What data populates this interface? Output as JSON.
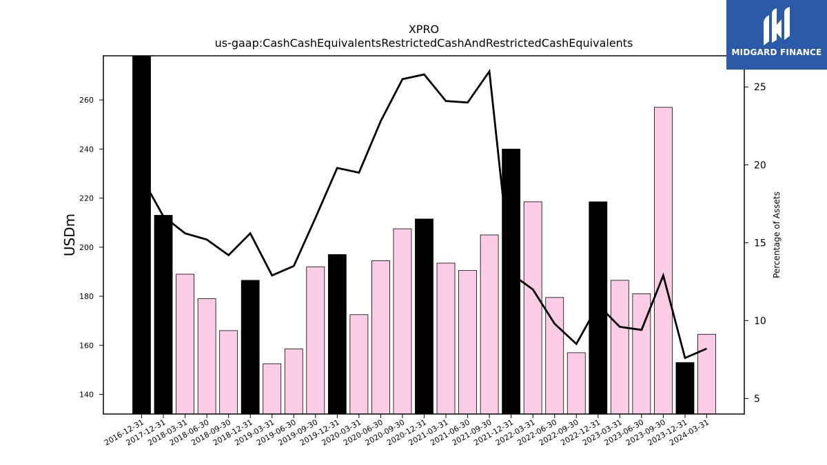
{
  "chart_data": {
    "type": "bar",
    "title": "XPRO",
    "subtitle": "us-gaap:CashCashEquivalentsRestrictedCashAndRestrictedCashEquivalents",
    "ylabel": "USDm",
    "y2label": "Percentage of Assets",
    "ylim": [
      132,
      278
    ],
    "y2lim": [
      4,
      27
    ],
    "yticks": [
      140,
      160,
      180,
      200,
      220,
      240,
      260
    ],
    "y2ticks": [
      5,
      10,
      15,
      20,
      25
    ],
    "categories": [
      "2016-12-31",
      "2017-12-31",
      "2018-03-31",
      "2018-06-30",
      "2018-09-30",
      "2018-12-31",
      "2019-03-31",
      "2019-06-30",
      "2019-09-30",
      "2019-12-31",
      "2020-03-31",
      "2020-06-30",
      "2020-09-30",
      "2020-12-31",
      "2021-03-31",
      "2021-06-30",
      "2021-09-30",
      "2021-12-31",
      "2022-03-31",
      "2022-06-30",
      "2022-09-30",
      "2022-12-31",
      "2023-03-31",
      "2023-06-30",
      "2023-09-30",
      "2023-12-31",
      "2024-03-31"
    ],
    "series": [
      {
        "kind": "bar",
        "values": [
          278,
          213,
          189,
          179,
          166,
          186.5,
          152.5,
          158.5,
          192,
          197,
          172.5,
          194.5,
          207.5,
          211.5,
          193.5,
          190.5,
          205,
          240,
          218.5,
          179.5,
          157,
          218.5,
          186.5,
          181,
          257,
          153,
          164.5
        ],
        "colors": [
          "#000000",
          "#000000",
          "#fccce6",
          "#fccce6",
          "#fccce6",
          "#000000",
          "#fccce6",
          "#fccce6",
          "#fccce6",
          "#000000",
          "#fccce6",
          "#fccce6",
          "#fccce6",
          "#000000",
          "#fccce6",
          "#fccce6",
          "#fccce6",
          "#000000",
          "#fccce6",
          "#fccce6",
          "#fccce6",
          "#000000",
          "#fccce6",
          "#fccce6",
          "#fccce6",
          "#000000",
          "#fccce6"
        ]
      },
      {
        "kind": "line",
        "axis": "right",
        "color": "#000000",
        "values": [
          19.2,
          16.7,
          15.6,
          15.2,
          14.2,
          15.6,
          12.9,
          13.5,
          16.6,
          19.8,
          19.5,
          22.8,
          25.5,
          25.8,
          24.1,
          24.0,
          26.0,
          13.0,
          12.0,
          9.8,
          8.5,
          11.0,
          9.6,
          9.4,
          12.9,
          7.6,
          8.2
        ]
      }
    ]
  },
  "logo": {
    "text": "MIDGARD FINANCE",
    "background": "#2a5aa8"
  }
}
